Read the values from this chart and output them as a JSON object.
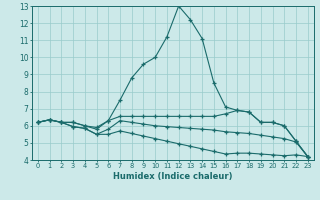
{
  "xlabel": "Humidex (Indice chaleur)",
  "xlim": [
    -0.5,
    23.5
  ],
  "ylim": [
    4,
    13
  ],
  "yticks": [
    4,
    5,
    6,
    7,
    8,
    9,
    10,
    11,
    12,
    13
  ],
  "xticks": [
    0,
    1,
    2,
    3,
    4,
    5,
    6,
    7,
    8,
    9,
    10,
    11,
    12,
    13,
    14,
    15,
    16,
    17,
    18,
    19,
    20,
    21,
    22,
    23
  ],
  "bg_color": "#cce9e9",
  "line_color": "#1a6b6b",
  "grid_color": "#99cccc",
  "line1_x": [
    0,
    1,
    2,
    3,
    4,
    5,
    6,
    7,
    8,
    9,
    10,
    11,
    12,
    13,
    14,
    15,
    16,
    17,
    18,
    19,
    20,
    21,
    22,
    23
  ],
  "line1_y": [
    6.2,
    6.35,
    6.2,
    6.2,
    6.0,
    5.8,
    6.3,
    7.5,
    8.8,
    9.6,
    10.0,
    11.2,
    13.0,
    12.2,
    11.1,
    8.5,
    7.1,
    6.9,
    6.8,
    6.2,
    6.2,
    6.0,
    5.1,
    4.2
  ],
  "line2_x": [
    0,
    1,
    2,
    3,
    4,
    5,
    6,
    7,
    8,
    9,
    10,
    11,
    12,
    13,
    14,
    15,
    16,
    17,
    18,
    19,
    20,
    21,
    22,
    23
  ],
  "line2_y": [
    6.2,
    6.35,
    6.2,
    6.2,
    6.0,
    5.9,
    6.3,
    6.55,
    6.55,
    6.55,
    6.55,
    6.55,
    6.55,
    6.55,
    6.55,
    6.55,
    6.7,
    6.9,
    6.8,
    6.2,
    6.2,
    6.0,
    5.1,
    4.2
  ],
  "line3_x": [
    0,
    1,
    2,
    3,
    4,
    5,
    6,
    7,
    8,
    9,
    10,
    11,
    12,
    13,
    14,
    15,
    16,
    17,
    18,
    19,
    20,
    21,
    22,
    23
  ],
  "line3_y": [
    6.2,
    6.35,
    6.2,
    5.95,
    5.85,
    5.5,
    5.8,
    6.3,
    6.2,
    6.1,
    6.0,
    5.95,
    5.9,
    5.85,
    5.8,
    5.75,
    5.65,
    5.6,
    5.55,
    5.45,
    5.35,
    5.25,
    5.05,
    4.2
  ],
  "line4_x": [
    0,
    1,
    2,
    3,
    4,
    5,
    6,
    7,
    8,
    9,
    10,
    11,
    12,
    13,
    14,
    15,
    16,
    17,
    18,
    19,
    20,
    21,
    22,
    23
  ],
  "line4_y": [
    6.2,
    6.35,
    6.2,
    5.95,
    5.85,
    5.5,
    5.5,
    5.7,
    5.55,
    5.4,
    5.25,
    5.1,
    4.95,
    4.8,
    4.65,
    4.5,
    4.35,
    4.4,
    4.4,
    4.35,
    4.3,
    4.25,
    4.3,
    4.2
  ]
}
